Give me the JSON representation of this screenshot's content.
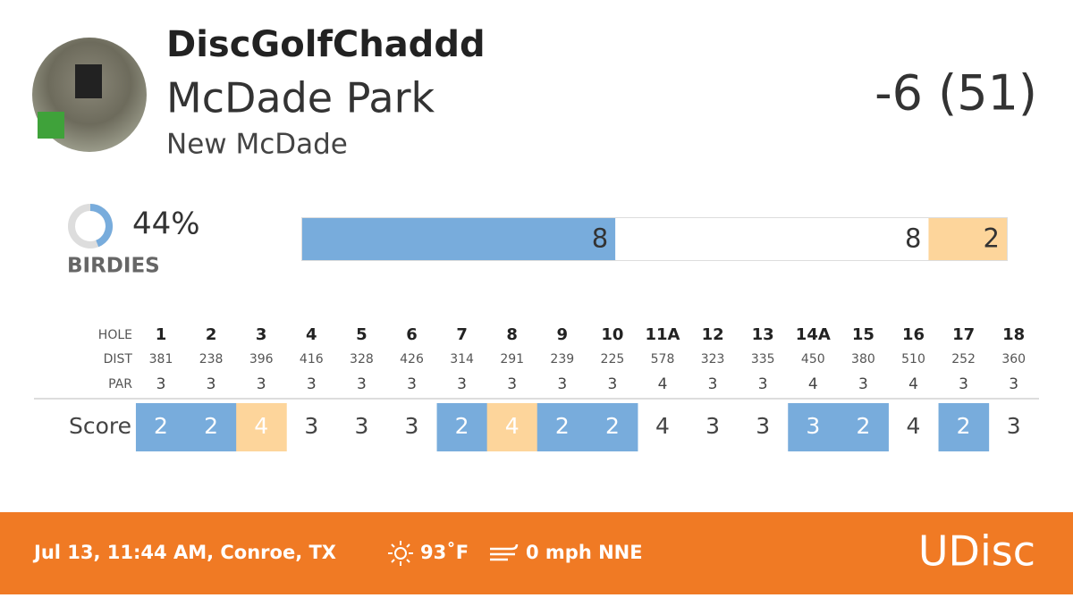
{
  "header": {
    "username": "DiscGolfChaddd",
    "course": "McDade Park",
    "layout": "New McDade",
    "score": "-6 (51)"
  },
  "birdies": {
    "percent": {
      "value": 44,
      "label": "44%"
    },
    "label": "BIRDIES",
    "color": "#78acdc"
  },
  "distribution": [
    {
      "count": 8,
      "color": "#78acdc"
    },
    {
      "count": 8,
      "color": "#ffffff"
    },
    {
      "count": 2,
      "color": "#fdd59b"
    }
  ],
  "scorecard": {
    "row_labels": [
      "HOLE",
      "DIST",
      "PAR",
      "Score"
    ],
    "under_par_color": "#78acdc",
    "over_par_color": "#fdd59b",
    "holes": [
      {
        "hole": "1",
        "dist": 381,
        "par": 3,
        "score": 2
      },
      {
        "hole": "2",
        "dist": 238,
        "par": 3,
        "score": 2
      },
      {
        "hole": "3",
        "dist": 396,
        "par": 3,
        "score": 4
      },
      {
        "hole": "4",
        "dist": 416,
        "par": 3,
        "score": 3
      },
      {
        "hole": "5",
        "dist": 328,
        "par": 3,
        "score": 3
      },
      {
        "hole": "6",
        "dist": 426,
        "par": 3,
        "score": 3
      },
      {
        "hole": "7",
        "dist": 314,
        "par": 3,
        "score": 2
      },
      {
        "hole": "8",
        "dist": 291,
        "par": 3,
        "score": 4
      },
      {
        "hole": "9",
        "dist": 239,
        "par": 3,
        "score": 2
      },
      {
        "hole": "10",
        "dist": 225,
        "par": 3,
        "score": 2
      },
      {
        "hole": "11A",
        "dist": 578,
        "par": 4,
        "score": 4
      },
      {
        "hole": "12",
        "dist": 323,
        "par": 3,
        "score": 3
      },
      {
        "hole": "13",
        "dist": 335,
        "par": 3,
        "score": 3
      },
      {
        "hole": "14A",
        "dist": 450,
        "par": 4,
        "score": 3
      },
      {
        "hole": "15",
        "dist": 380,
        "par": 3,
        "score": 2
      },
      {
        "hole": "16",
        "dist": 510,
        "par": 4,
        "score": 4
      },
      {
        "hole": "17",
        "dist": 252,
        "par": 3,
        "score": 2
      },
      {
        "hole": "18",
        "dist": 360,
        "par": 3,
        "score": 3
      }
    ]
  },
  "footer": {
    "date_location": "Jul 13, 11:44 AM, Conroe, TX",
    "temperature": "93˚F",
    "wind": "0 mph NNE",
    "logo": "UDisc"
  }
}
